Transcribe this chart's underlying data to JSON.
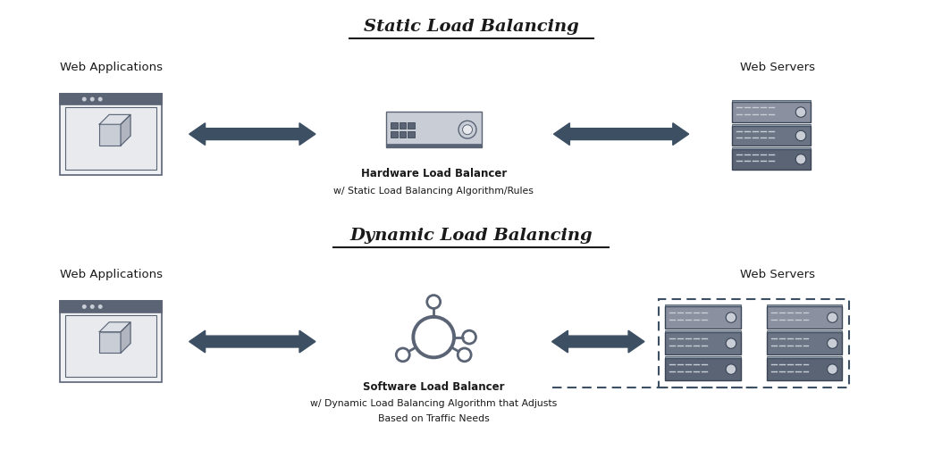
{
  "bg_color": "#ffffff",
  "icon_color": "#5a6475",
  "icon_light": "#c8cdd6",
  "icon_lighter": "#e8eaee",
  "arrow_color": "#3d4f63",
  "text_dark": "#1a1a1a",
  "static_title": "Static Load Balancing",
  "dynamic_title": "Dynamic Load Balancing",
  "label_web_app": "Web Applications",
  "label_web_servers": "Web Servers",
  "label_hw_lb_line1": "Hardware Load Balancer",
  "label_hw_lb_line2": "w/ Static Load Balancing Algorithm/Rules",
  "label_sw_lb_line1": "Software Load Balancer",
  "label_sw_lb_line2": "w/ Dynamic Load Balancing Algorithm that Adjusts",
  "label_sw_lb_line3": "Based on Traffic Needs"
}
